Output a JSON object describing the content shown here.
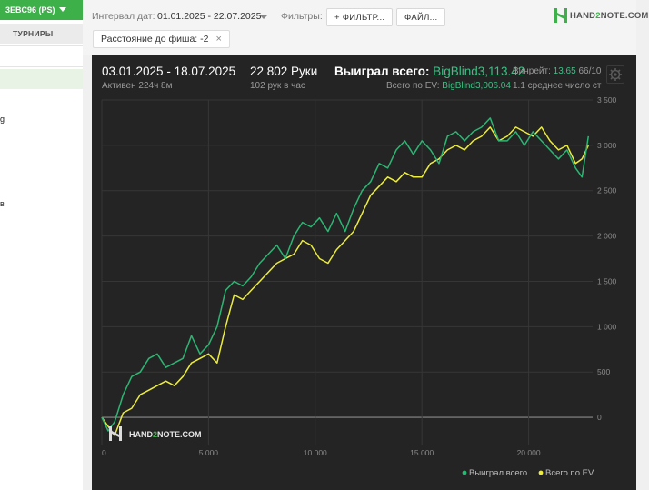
{
  "sidebar": {
    "account_label": "3EBC96 (PS)",
    "tab_label": "ТУРНИРЫ",
    "fragment_1": "g",
    "fragment_2": "в"
  },
  "toolbar": {
    "interval_label": "Интервал дат:",
    "interval_value": "01.01.2025 - 22.07.2025",
    "filters_label": "Фильтры:",
    "filter_button": "+ ФИЛЬТР...",
    "file_button": "ФАЙЛ..."
  },
  "active_filter": {
    "label": "Расстояние до фиша: -2",
    "remove_symbol": "×"
  },
  "logo": {
    "text_part1": "HAND",
    "text_part2": "2",
    "text_part3": "NOTE.COM",
    "brand_color": "#3db04a"
  },
  "summary": {
    "date_range": "03.01.2025 - 18.07.2025",
    "active_time": "Активен 224ч 8м",
    "hands": "22 802 Руки",
    "hands_per_hour": "102 рук в час",
    "won_label": "Выиграл всего:",
    "won_value": "BigBlind3,113.42",
    "ev_label": "Всего по EV:",
    "ev_value": "BigBlind3,006.04",
    "winrate_label": "Винрейт:",
    "winrate_value": "13.65",
    "winrate_extra": "66/10",
    "avg_text": "1.1 среднее число ст"
  },
  "watermark": {
    "text_part1": "HAND",
    "text_part2": "2",
    "text_part3": "NOTE.COM"
  },
  "chart_data": {
    "type": "line",
    "x_ticks": [
      "0",
      "5 000",
      "10 000",
      "15 000",
      "20 000"
    ],
    "y_ticks": [
      "3 500",
      "3 000",
      "2 500",
      "2 000",
      "1 500",
      "1 000",
      "500",
      "0"
    ],
    "xlim": [
      0,
      23000
    ],
    "ylim": [
      -300,
      3500
    ],
    "grid": true,
    "legend_position": "bottom-right",
    "series": [
      {
        "name": "Выиграл всего",
        "color": "#2bb673",
        "x": [
          0,
          300,
          600,
          1000,
          1400,
          1800,
          2200,
          2600,
          3000,
          3400,
          3800,
          4200,
          4600,
          5000,
          5400,
          5800,
          6200,
          6600,
          7000,
          7400,
          7800,
          8200,
          8600,
          9000,
          9400,
          9800,
          10200,
          10600,
          11000,
          11400,
          11800,
          12200,
          12600,
          13000,
          13400,
          13800,
          14200,
          14600,
          15000,
          15400,
          15800,
          16200,
          16600,
          17000,
          17400,
          17800,
          18200,
          18600,
          19000,
          19400,
          19800,
          20200,
          20600,
          21000,
          21400,
          21800,
          22200,
          22500,
          22800
        ],
        "values": [
          0,
          -150,
          -50,
          250,
          450,
          500,
          650,
          700,
          550,
          600,
          650,
          900,
          700,
          800,
          1000,
          1400,
          1500,
          1450,
          1550,
          1700,
          1800,
          1900,
          1750,
          2000,
          2150,
          2100,
          2200,
          2050,
          2250,
          2050,
          2300,
          2500,
          2600,
          2800,
          2750,
          2950,
          3050,
          2900,
          3050,
          2950,
          2800,
          3100,
          3150,
          3050,
          3150,
          3200,
          3300,
          3050,
          3050,
          3150,
          3000,
          3150,
          3050,
          2950,
          2850,
          2950,
          2750,
          2650,
          3100
        ]
      },
      {
        "name": "Всего по EV",
        "color": "#ecec3c",
        "x": [
          0,
          300,
          600,
          1000,
          1400,
          1800,
          2200,
          2600,
          3000,
          3400,
          3800,
          4200,
          4600,
          5000,
          5400,
          5800,
          6200,
          6600,
          7000,
          7400,
          7800,
          8200,
          8600,
          9000,
          9400,
          9800,
          10200,
          10600,
          11000,
          11400,
          11800,
          12200,
          12600,
          13000,
          13400,
          13800,
          14200,
          14600,
          15000,
          15400,
          15800,
          16200,
          16600,
          17000,
          17400,
          17800,
          18200,
          18600,
          19000,
          19400,
          19800,
          20200,
          20600,
          21000,
          21400,
          21800,
          22200,
          22500,
          22800
        ],
        "values": [
          0,
          -100,
          -200,
          50,
          100,
          250,
          300,
          350,
          400,
          350,
          450,
          600,
          650,
          700,
          600,
          1000,
          1350,
          1300,
          1400,
          1500,
          1600,
          1700,
          1750,
          1800,
          1950,
          1900,
          1750,
          1700,
          1850,
          1950,
          2050,
          2250,
          2450,
          2550,
          2650,
          2600,
          2700,
          2650,
          2650,
          2800,
          2850,
          2950,
          3000,
          2950,
          3050,
          3100,
          3200,
          3050,
          3100,
          3200,
          3150,
          3100,
          3200,
          3050,
          2950,
          3000,
          2800,
          2850,
          3000
        ]
      }
    ]
  }
}
